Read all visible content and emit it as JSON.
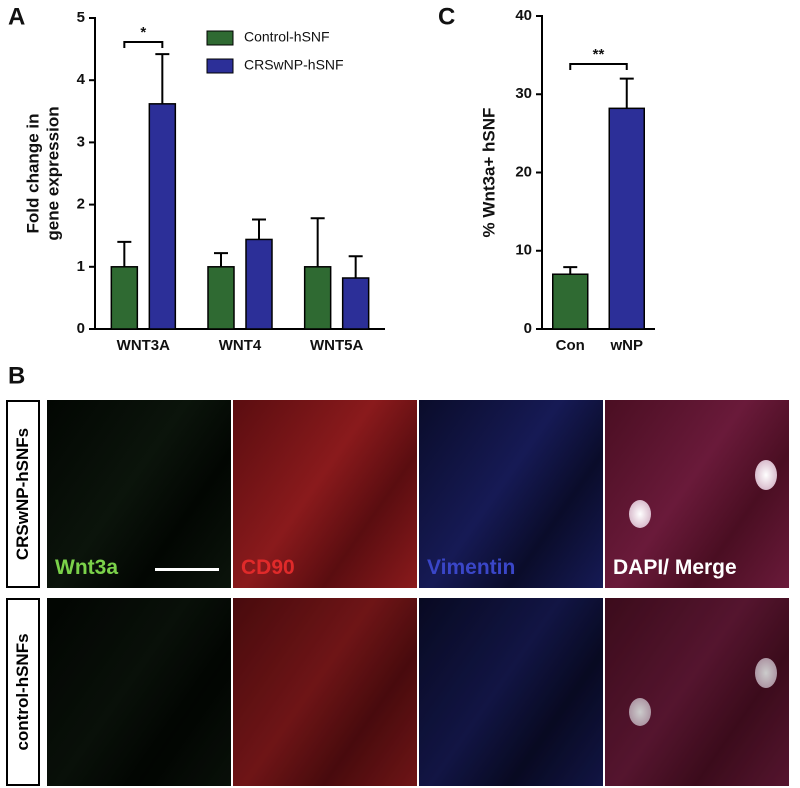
{
  "panel_labels": [
    "A",
    "B",
    "C"
  ],
  "chart_data": [
    {
      "type": "grouped_bar",
      "y_label_lines": [
        "Fold change in",
        "gene expression"
      ],
      "categories": [
        "WNT3A",
        "WNT4",
        "WNT5A"
      ],
      "series": [
        {
          "name": "Control-hSNF",
          "color": "#2f6a32",
          "values": [
            1,
            1,
            1
          ],
          "errors": [
            0.4,
            0.22,
            0.78
          ]
        },
        {
          "name": "CRSwNP-hSNF",
          "color": "#2c2f98",
          "values": [
            3.62,
            1.44,
            0.82
          ],
          "errors": [
            0.8,
            0.32,
            0.35
          ]
        }
      ],
      "ylim": [
        0,
        5
      ],
      "yticks": [
        0,
        1,
        2,
        3,
        4,
        5
      ],
      "annotation": "*"
    },
    {
      "type": "bar",
      "y_label": "% Wnt3a+ hSNF",
      "categories": [
        "Con",
        "wNP"
      ],
      "values": [
        7,
        28.2
      ],
      "errors": [
        0.9,
        3.8
      ],
      "colors": [
        "#2f6a32",
        "#2c2f98"
      ],
      "ylim": [
        0,
        40
      ],
      "yticks": [
        0,
        10,
        20,
        30,
        40
      ],
      "annotation": "**"
    }
  ],
  "panel_b": {
    "rows": [
      "CRSwNP-hSNFs",
      "control-hSNFs"
    ],
    "channels": [
      "Wnt3a",
      "CD90",
      "Vimentin",
      "DAPI/ Merge"
    ]
  }
}
